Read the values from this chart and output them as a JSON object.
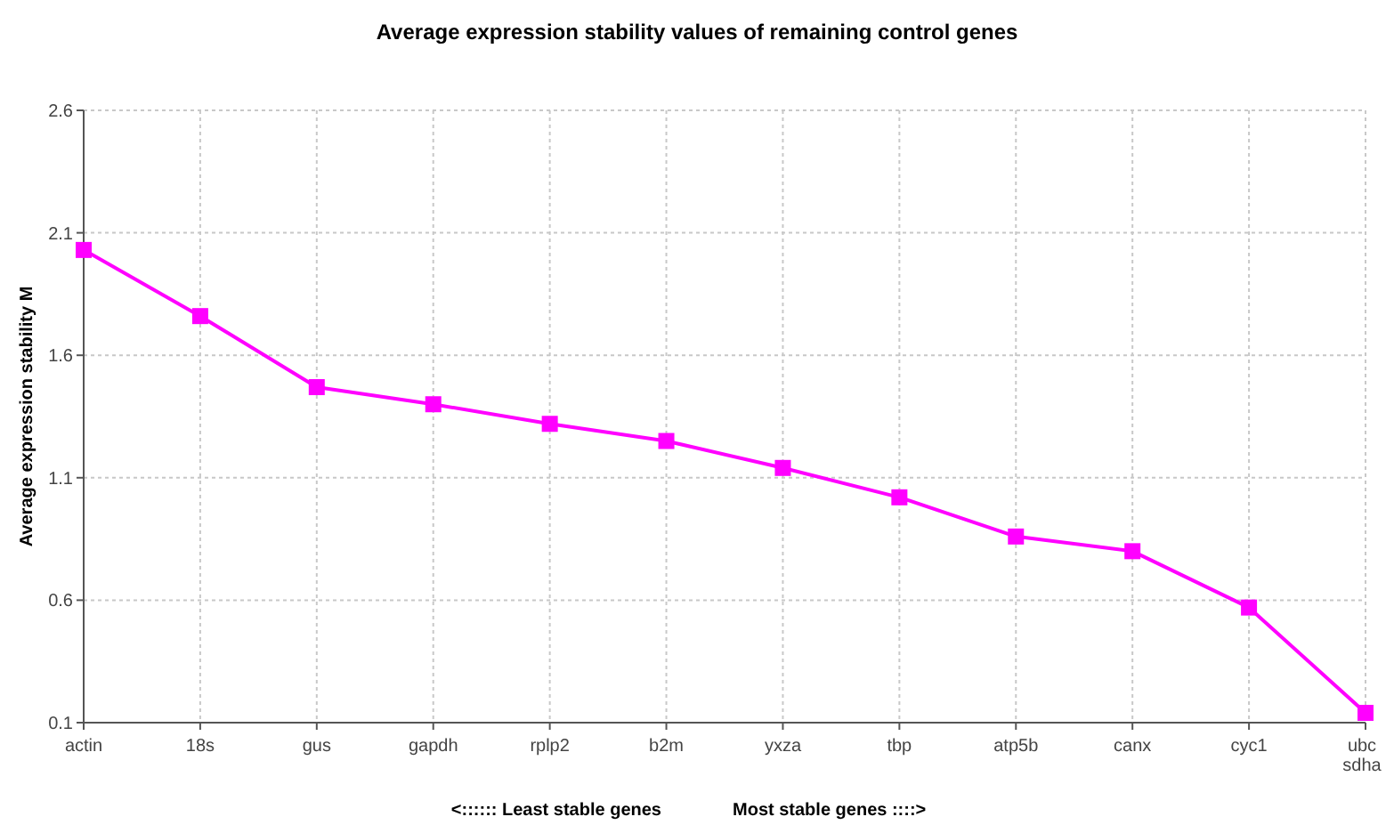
{
  "chart_data": {
    "type": "line",
    "title": "Average expression stability values of remaining control genes",
    "ylabel": "Average expression stability M",
    "categories": [
      "actin",
      "18s",
      "gus",
      "gapdh",
      "rplp2",
      "b2m",
      "yxza",
      "tbp",
      "atp5b",
      "canx",
      "cyc1",
      "ubc sdha"
    ],
    "series": [
      {
        "color": "#ff00ff",
        "values": [
          2.03,
          1.76,
          1.47,
          1.4,
          1.32,
          1.25,
          1.14,
          1.02,
          0.86,
          0.8,
          0.57,
          0.14
        ]
      }
    ],
    "ylim": [
      0.1,
      2.6
    ],
    "yticks": [
      0.1,
      0.6,
      1.1,
      1.6,
      2.1,
      2.6
    ],
    "grid": true,
    "marker": "square",
    "line_style": "solid",
    "annotations": [
      "<::::::  Least stable genes",
      "Most stable genes ::::>"
    ]
  }
}
